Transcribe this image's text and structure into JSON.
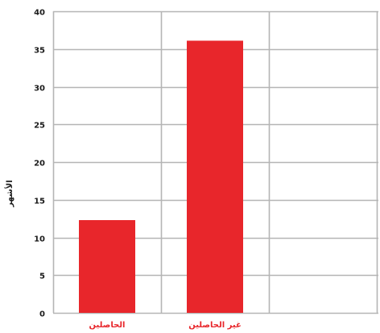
{
  "chart_data": {
    "type": "bar",
    "categories": [
      "الحاصلين",
      "غير الحاصلين"
    ],
    "values": [
      12.3,
      36.1
    ],
    "ylabel": "الأشهر",
    "ylim": [
      0,
      40
    ],
    "yticks": [
      0,
      5,
      10,
      15,
      20,
      25,
      30,
      35,
      40
    ],
    "grid": true,
    "colors": {
      "bar": "#e8262b",
      "category_label": "#e8262b",
      "grid": "#b5b5b5",
      "axis_text": "#1a1a1a"
    }
  }
}
